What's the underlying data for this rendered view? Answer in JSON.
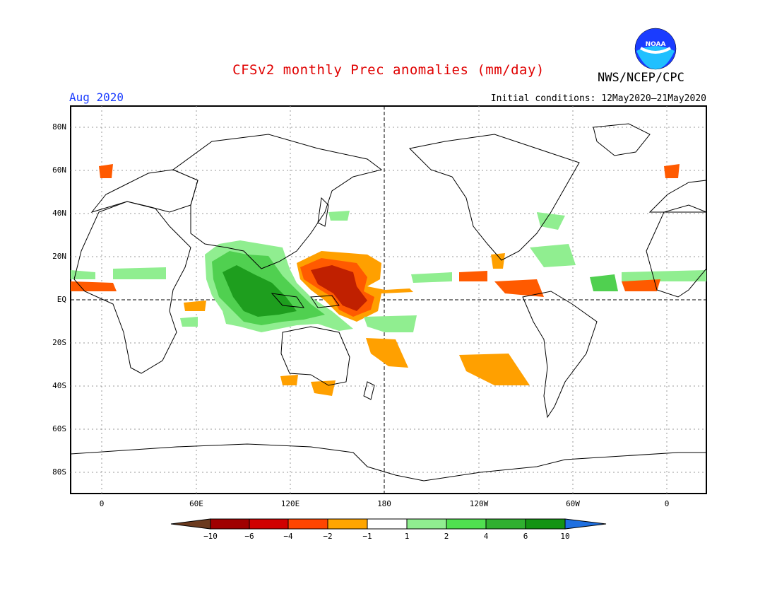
{
  "header": {
    "title": "CFSv2 monthly Prec anomalies (mm/day)",
    "org": "NWS/NCEP/CPC",
    "month": "Aug 2020",
    "initial_conditions": "Initial conditions: 12May2020–21May2020",
    "logo_text": "NOAA"
  },
  "map": {
    "lat_labels": [
      "80N",
      "60N",
      "40N",
      "20N",
      "EQ",
      "20S",
      "40S",
      "60S",
      "80S"
    ],
    "lon_labels": [
      "0",
      "60E",
      "120E",
      "180",
      "120W",
      "60W",
      "0"
    ],
    "dashed_reference_lines": [
      "EQ",
      "180"
    ]
  },
  "colorbar": {
    "labels": [
      "−10",
      "−6",
      "−4",
      "−2",
      "−1",
      "1",
      "2",
      "4",
      "6",
      "10"
    ],
    "colors": [
      "#6b3a1e",
      "#a00000",
      "#d00000",
      "#ff4500",
      "#ffa500",
      "#ffffff",
      "#90ee90",
      "#50e050",
      "#30b030",
      "#149414",
      "#1e6fe0"
    ]
  },
  "colors": {
    "title": "#e00000",
    "month": "#1a3cff",
    "dry_strong": "#c02000",
    "dry_mid": "#ff5a00",
    "dry_weak": "#ffa000",
    "wet_weak": "#90ee90",
    "wet_mid": "#50d050",
    "wet_strong": "#1e9e1e"
  }
}
